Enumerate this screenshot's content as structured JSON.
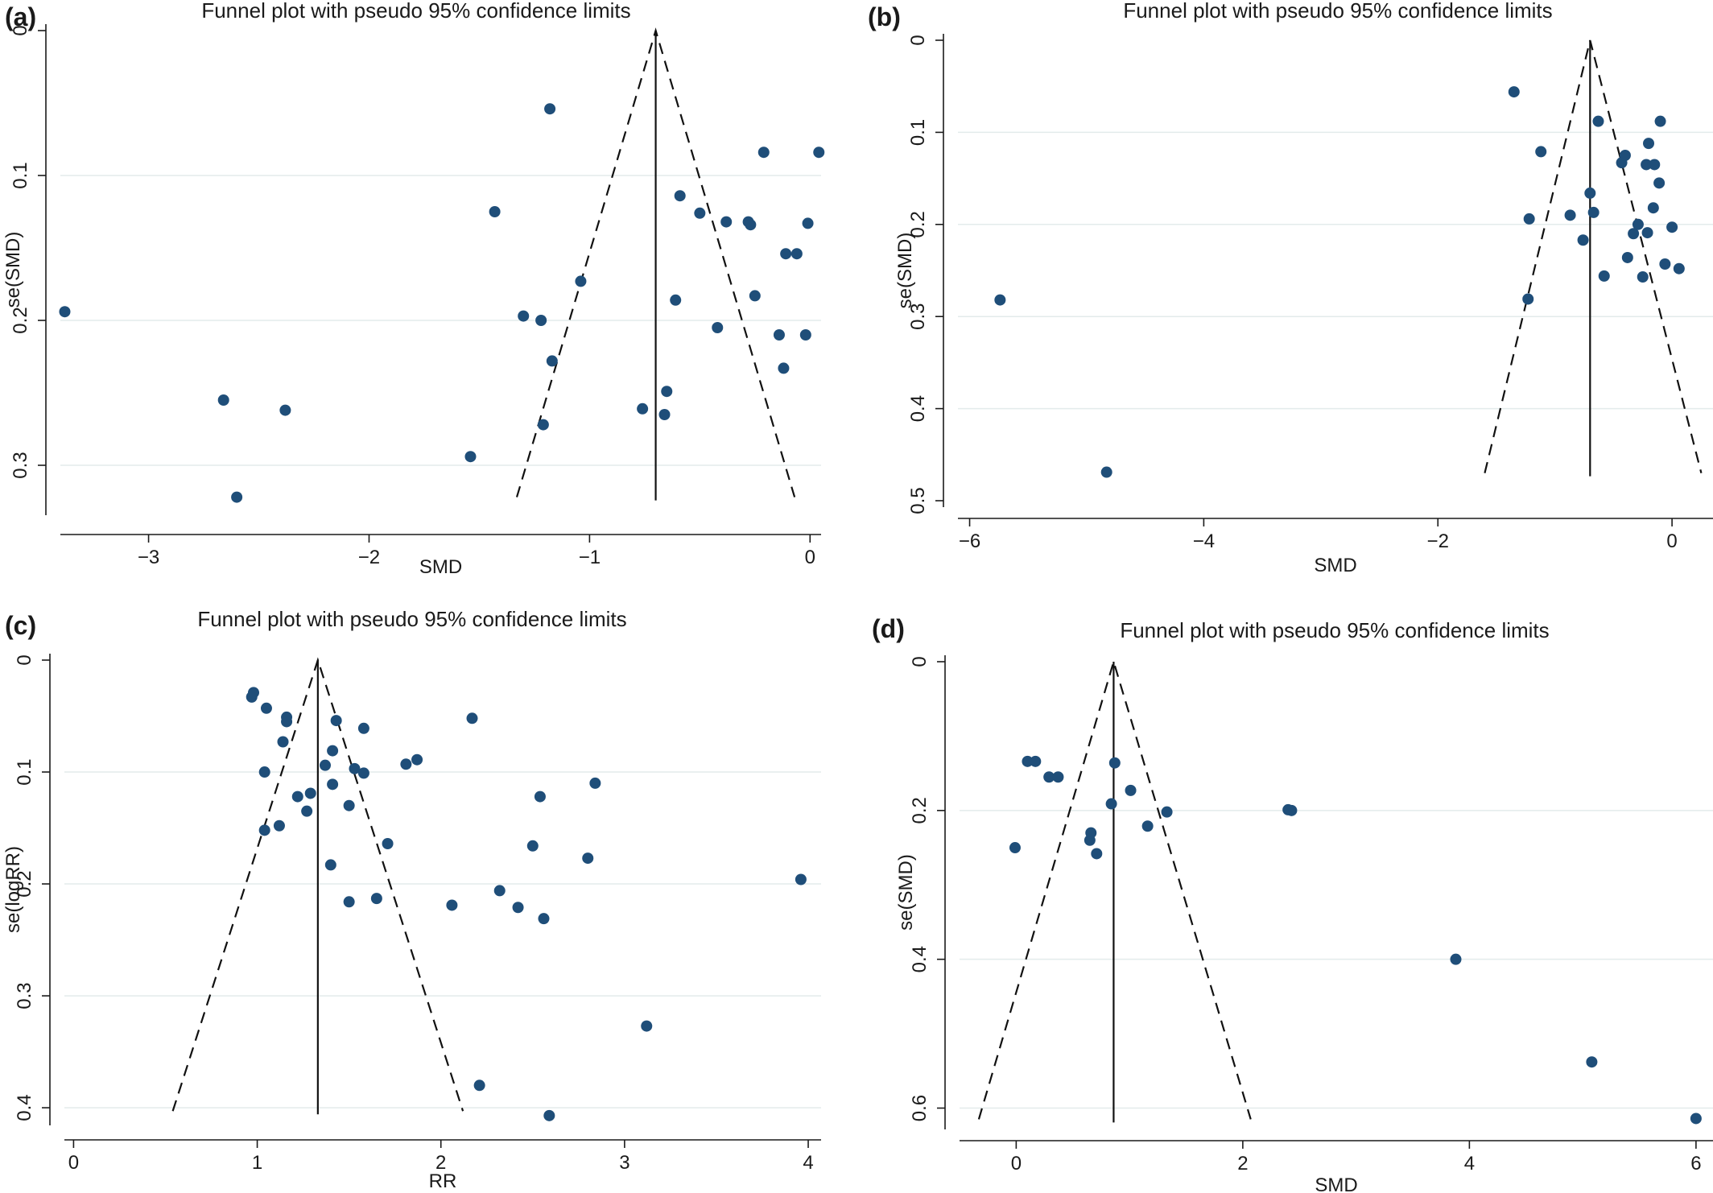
{
  "chart_data": [
    {
      "panel_label": "(a)",
      "type": "scatter",
      "title": "Funnel plot with pseudo 95% confidence limits",
      "xlabel": "SMD",
      "ylabel": "se(SMD)",
      "xlim": [
        -3.4,
        0.05
      ],
      "ylim": [
        0,
        0.33
      ],
      "y_inverted": true,
      "grid": true,
      "xticks": [
        -3,
        -2,
        -1,
        0
      ],
      "xtick_labels": [
        "−3",
        "−2",
        "−1",
        "0"
      ],
      "yticks": [
        0,
        0.1,
        0.2,
        0.3
      ],
      "ytick_labels": [
        "0",
        "0.1",
        "0.2",
        "0.3"
      ],
      "pooled_estimate": -0.7,
      "funnel": {
        "apex_y": 0,
        "bottom_y": 0.322,
        "left_x": -1.33,
        "right_x": -0.07
      },
      "points": [
        {
          "x": -3.38,
          "y": 0.194
        },
        {
          "x": -2.66,
          "y": 0.255
        },
        {
          "x": -2.6,
          "y": 0.322
        },
        {
          "x": -2.38,
          "y": 0.262
        },
        {
          "x": -1.54,
          "y": 0.294
        },
        {
          "x": -1.43,
          "y": 0.125
        },
        {
          "x": -1.3,
          "y": 0.197
        },
        {
          "x": -1.22,
          "y": 0.2
        },
        {
          "x": -1.21,
          "y": 0.272
        },
        {
          "x": -1.18,
          "y": 0.054
        },
        {
          "x": -1.17,
          "y": 0.228
        },
        {
          "x": -1.04,
          "y": 0.173
        },
        {
          "x": -0.76,
          "y": 0.261
        },
        {
          "x": -0.66,
          "y": 0.265
        },
        {
          "x": -0.65,
          "y": 0.249
        },
        {
          "x": -0.61,
          "y": 0.186
        },
        {
          "x": -0.59,
          "y": 0.114
        },
        {
          "x": -0.5,
          "y": 0.126
        },
        {
          "x": -0.42,
          "y": 0.205
        },
        {
          "x": -0.38,
          "y": 0.132
        },
        {
          "x": -0.28,
          "y": 0.132
        },
        {
          "x": -0.27,
          "y": 0.134
        },
        {
          "x": -0.25,
          "y": 0.183
        },
        {
          "x": -0.21,
          "y": 0.084
        },
        {
          "x": -0.14,
          "y": 0.21
        },
        {
          "x": -0.12,
          "y": 0.233
        },
        {
          "x": -0.11,
          "y": 0.154
        },
        {
          "x": -0.06,
          "y": 0.154
        },
        {
          "x": -0.02,
          "y": 0.21
        },
        {
          "x": -0.01,
          "y": 0.133
        },
        {
          "x": 0.04,
          "y": 0.084
        }
      ]
    },
    {
      "panel_label": "(b)",
      "type": "scatter",
      "title": "Funnel plot with pseudo 95% confidence limits",
      "xlabel": "SMD",
      "ylabel": "se(SMD)",
      "xlim": [
        -6.1,
        0.35
      ],
      "ylim": [
        0,
        0.5
      ],
      "y_inverted": true,
      "grid": true,
      "xticks": [
        -6,
        -4,
        -2,
        0
      ],
      "xtick_labels": [
        "−6",
        "−4",
        "−2",
        "0"
      ],
      "yticks": [
        0,
        0.1,
        0.2,
        0.3,
        0.4,
        0.5
      ],
      "ytick_labels": [
        "0",
        "0.1",
        "0.2",
        "0.3",
        "0.4",
        "0.5"
      ],
      "pooled_estimate": -0.7,
      "funnel": {
        "apex_y": 0,
        "bottom_y": 0.47,
        "left_x": -1.6,
        "right_x": 0.25
      },
      "points": [
        {
          "x": -5.74,
          "y": 0.282
        },
        {
          "x": -4.83,
          "y": 0.469
        },
        {
          "x": -1.35,
          "y": 0.056
        },
        {
          "x": -1.22,
          "y": 0.194
        },
        {
          "x": -1.23,
          "y": 0.281
        },
        {
          "x": -1.12,
          "y": 0.121
        },
        {
          "x": -0.87,
          "y": 0.19
        },
        {
          "x": -0.76,
          "y": 0.217
        },
        {
          "x": -0.7,
          "y": 0.166
        },
        {
          "x": -0.67,
          "y": 0.187
        },
        {
          "x": -0.63,
          "y": 0.088
        },
        {
          "x": -0.58,
          "y": 0.256
        },
        {
          "x": -0.43,
          "y": 0.133
        },
        {
          "x": -0.4,
          "y": 0.125
        },
        {
          "x": -0.38,
          "y": 0.236
        },
        {
          "x": -0.33,
          "y": 0.21
        },
        {
          "x": -0.29,
          "y": 0.2
        },
        {
          "x": -0.25,
          "y": 0.257
        },
        {
          "x": -0.22,
          "y": 0.135
        },
        {
          "x": -0.21,
          "y": 0.209
        },
        {
          "x": -0.2,
          "y": 0.112
        },
        {
          "x": -0.16,
          "y": 0.182
        },
        {
          "x": -0.15,
          "y": 0.135
        },
        {
          "x": -0.11,
          "y": 0.155
        },
        {
          "x": -0.1,
          "y": 0.088
        },
        {
          "x": -0.06,
          "y": 0.243
        },
        {
          "x": 0.0,
          "y": 0.203
        },
        {
          "x": 0.06,
          "y": 0.248
        }
      ]
    },
    {
      "panel_label": "(c)",
      "type": "scatter",
      "title": "Funnel plot with pseudo 95% confidence limits",
      "xlabel": "RR",
      "ylabel": "se(logRR)",
      "xlim": [
        -0.05,
        4.07
      ],
      "ylim": [
        0,
        0.41
      ],
      "y_inverted": true,
      "grid": true,
      "xticks": [
        0,
        1,
        2,
        3,
        4
      ],
      "xtick_labels": [
        "0",
        "1",
        "2",
        "3",
        "4"
      ],
      "yticks": [
        0,
        0.1,
        0.2,
        0.3,
        0.4
      ],
      "ytick_labels": [
        "0",
        "0.1",
        "0.2",
        "0.3",
        "0.4"
      ],
      "pooled_estimate": 1.33,
      "funnel": {
        "apex_y": 0,
        "bottom_y": 0.403,
        "left_x": 0.54,
        "right_x": 2.12
      },
      "points": [
        {
          "x": 0.97,
          "y": 0.033
        },
        {
          "x": 0.98,
          "y": 0.029
        },
        {
          "x": 1.04,
          "y": 0.1
        },
        {
          "x": 1.04,
          "y": 0.152
        },
        {
          "x": 1.05,
          "y": 0.043
        },
        {
          "x": 1.12,
          "y": 0.148
        },
        {
          "x": 1.14,
          "y": 0.073
        },
        {
          "x": 1.16,
          "y": 0.051
        },
        {
          "x": 1.16,
          "y": 0.055
        },
        {
          "x": 1.22,
          "y": 0.122
        },
        {
          "x": 1.27,
          "y": 0.135
        },
        {
          "x": 1.29,
          "y": 0.119
        },
        {
          "x": 1.37,
          "y": 0.094
        },
        {
          "x": 1.4,
          "y": 0.183
        },
        {
          "x": 1.41,
          "y": 0.111
        },
        {
          "x": 1.41,
          "y": 0.081
        },
        {
          "x": 1.43,
          "y": 0.054
        },
        {
          "x": 1.5,
          "y": 0.13
        },
        {
          "x": 1.5,
          "y": 0.216
        },
        {
          "x": 1.53,
          "y": 0.097
        },
        {
          "x": 1.58,
          "y": 0.101
        },
        {
          "x": 1.58,
          "y": 0.061
        },
        {
          "x": 1.65,
          "y": 0.213
        },
        {
          "x": 1.71,
          "y": 0.164
        },
        {
          "x": 1.81,
          "y": 0.093
        },
        {
          "x": 1.87,
          "y": 0.089
        },
        {
          "x": 2.06,
          "y": 0.219
        },
        {
          "x": 2.17,
          "y": 0.052
        },
        {
          "x": 2.21,
          "y": 0.38
        },
        {
          "x": 2.32,
          "y": 0.206
        },
        {
          "x": 2.42,
          "y": 0.221
        },
        {
          "x": 2.5,
          "y": 0.166
        },
        {
          "x": 2.54,
          "y": 0.122
        },
        {
          "x": 2.56,
          "y": 0.231
        },
        {
          "x": 2.59,
          "y": 0.407
        },
        {
          "x": 2.8,
          "y": 0.177
        },
        {
          "x": 2.84,
          "y": 0.11
        },
        {
          "x": 3.12,
          "y": 0.327
        },
        {
          "x": 3.96,
          "y": 0.196
        }
      ]
    },
    {
      "panel_label": "(d)",
      "type": "scatter",
      "title": "Funnel plot with pseudo 95% confidence limits",
      "xlabel": "SMD",
      "ylabel": "se(SMD)",
      "xlim": [
        -0.5,
        6.15
      ],
      "ylim": [
        0,
        0.62
      ],
      "y_inverted": true,
      "grid": true,
      "xticks": [
        0,
        2,
        4,
        6
      ],
      "xtick_labels": [
        "0",
        "2",
        "4",
        "6"
      ],
      "yticks": [
        0,
        0.2,
        0.4,
        0.6
      ],
      "ytick_labels": [
        "0",
        "0.2",
        "0.4",
        "0.6"
      ],
      "pooled_estimate": 0.86,
      "funnel": {
        "apex_y": 0,
        "bottom_y": 0.615,
        "left_x": -0.33,
        "right_x": 2.07
      },
      "points": [
        {
          "x": -0.01,
          "y": 0.25
        },
        {
          "x": 0.1,
          "y": 0.134
        },
        {
          "x": 0.17,
          "y": 0.134
        },
        {
          "x": 0.29,
          "y": 0.155
        },
        {
          "x": 0.37,
          "y": 0.155
        },
        {
          "x": 0.65,
          "y": 0.24
        },
        {
          "x": 0.66,
          "y": 0.23
        },
        {
          "x": 0.71,
          "y": 0.258
        },
        {
          "x": 0.84,
          "y": 0.191
        },
        {
          "x": 0.87,
          "y": 0.136
        },
        {
          "x": 1.01,
          "y": 0.173
        },
        {
          "x": 1.16,
          "y": 0.221
        },
        {
          "x": 1.33,
          "y": 0.202
        },
        {
          "x": 2.4,
          "y": 0.199
        },
        {
          "x": 2.43,
          "y": 0.2
        },
        {
          "x": 3.88,
          "y": 0.4
        },
        {
          "x": 5.08,
          "y": 0.538
        },
        {
          "x": 6.0,
          "y": 0.614
        }
      ]
    }
  ]
}
